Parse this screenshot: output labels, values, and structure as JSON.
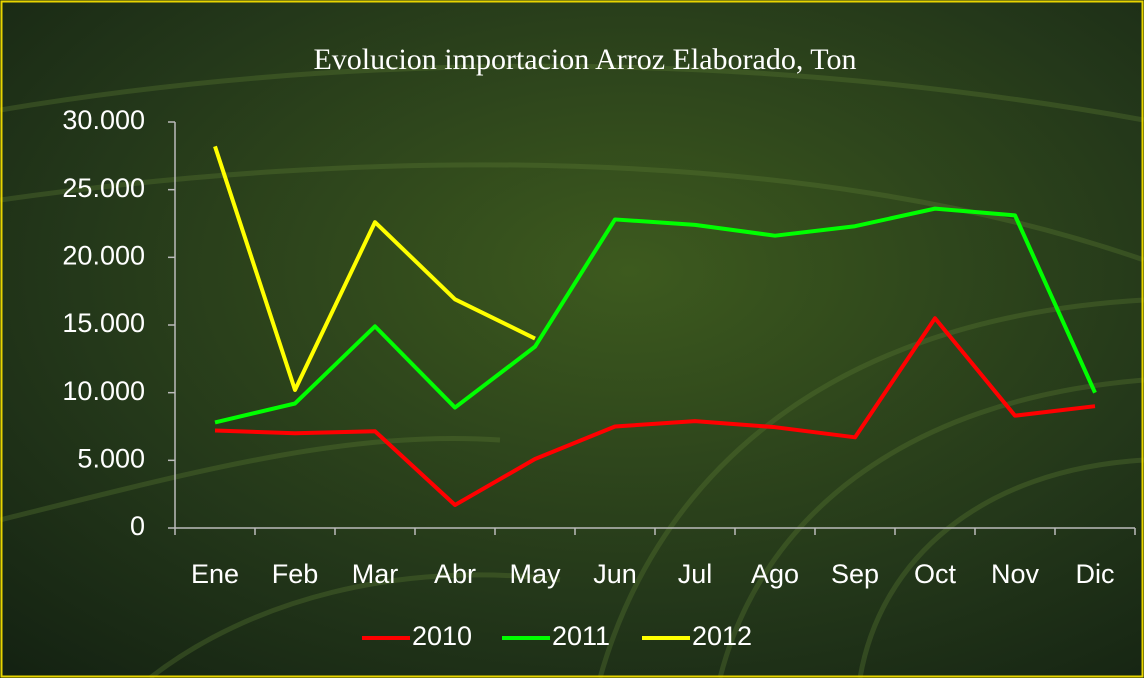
{
  "chart_data": {
    "type": "line",
    "title": "Evolucion importacion Arroz Elaborado, Ton",
    "categories": [
      "Ene",
      "Feb",
      "Mar",
      "Abr",
      "May",
      "Jun",
      "Jul",
      "Ago",
      "Sep",
      "Oct",
      "Nov",
      "Dic"
    ],
    "series": [
      {
        "name": "2010",
        "color": "#ff0000",
        "values": [
          7200,
          7000,
          7150,
          1700,
          5100,
          7500,
          7900,
          7450,
          6700,
          15500,
          8300,
          9000
        ]
      },
      {
        "name": "2011",
        "color": "#00ff00",
        "values": [
          7800,
          9200,
          14900,
          8900,
          13400,
          22800,
          22400,
          21600,
          22300,
          23600,
          23100,
          10000
        ]
      },
      {
        "name": "2012",
        "color": "#ffff00",
        "values": [
          28200,
          10200,
          22600,
          16900,
          14000,
          null,
          null,
          null,
          null,
          null,
          null,
          null
        ]
      }
    ],
    "ylim": [
      0,
      30000
    ],
    "yticks": [
      0,
      {
        "value": 5000,
        "label": "5.000"
      },
      {
        "value": 10000,
        "label": "10.000"
      },
      {
        "value": 15000,
        "label": "15.000"
      },
      {
        "value": 20000,
        "label": "20.000"
      },
      {
        "value": 25000,
        "label": "25.000"
      },
      {
        "value": 30000,
        "label": "30.000"
      }
    ],
    "legend": "bottom"
  }
}
